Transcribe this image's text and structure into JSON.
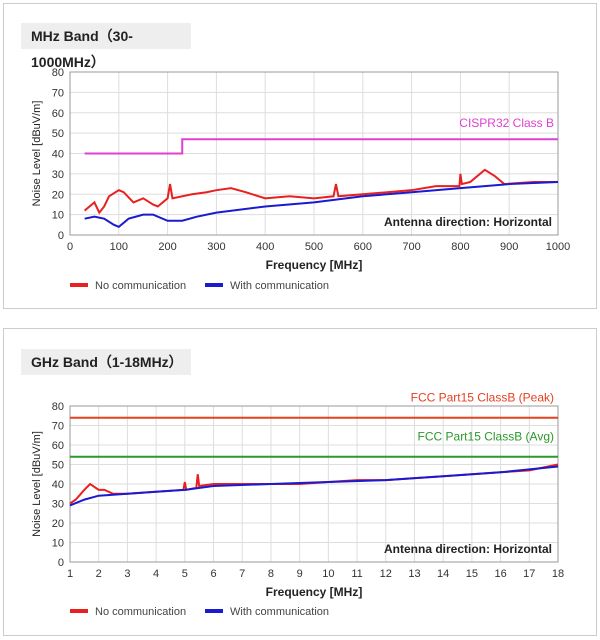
{
  "chart_data": [
    {
      "type": "line",
      "header": "MHz Band（30-1000MHz）",
      "xlabel": "Frequency [MHz]",
      "ylabel": "Noise Level [dBuV/m]",
      "xlim": [
        0,
        1000
      ],
      "ylim": [
        0,
        80
      ],
      "xticks": [
        0,
        100,
        200,
        300,
        400,
        500,
        600,
        700,
        800,
        900,
        1000
      ],
      "yticks": [
        0,
        10,
        20,
        30,
        40,
        50,
        60,
        70,
        80
      ],
      "grid": true,
      "legend": "bottom-left",
      "annotation": "Antenna direction: Horizontal",
      "limits": [
        {
          "name": "CISPR32 Class B",
          "color": "#e040d0",
          "points": [
            [
              30,
              40
            ],
            [
              230,
              40
            ],
            [
              230,
              47
            ],
            [
              1000,
              47
            ]
          ]
        }
      ],
      "series": [
        {
          "name": "No communication",
          "color": "#e82020",
          "points": [
            [
              30,
              12
            ],
            [
              40,
              14
            ],
            [
              50,
              16
            ],
            [
              60,
              11
            ],
            [
              70,
              14
            ],
            [
              80,
              19
            ],
            [
              100,
              22
            ],
            [
              110,
              21
            ],
            [
              130,
              16
            ],
            [
              150,
              18
            ],
            [
              170,
              15
            ],
            [
              180,
              14
            ],
            [
              200,
              18
            ],
            [
              205,
              25
            ],
            [
              210,
              18
            ],
            [
              250,
              20
            ],
            [
              280,
              21
            ],
            [
              300,
              22
            ],
            [
              330,
              23
            ],
            [
              360,
              21
            ],
            [
              400,
              18
            ],
            [
              450,
              19
            ],
            [
              500,
              18
            ],
            [
              540,
              19
            ],
            [
              545,
              25
            ],
            [
              550,
              19
            ],
            [
              600,
              20
            ],
            [
              650,
              21
            ],
            [
              700,
              22
            ],
            [
              750,
              24
            ],
            [
              798,
              24
            ],
            [
              800,
              30
            ],
            [
              803,
              25
            ],
            [
              820,
              26
            ],
            [
              850,
              32
            ],
            [
              870,
              29
            ],
            [
              890,
              25
            ],
            [
              950,
              26
            ],
            [
              1000,
              26
            ]
          ]
        },
        {
          "name": "With communication",
          "color": "#1a1ad0",
          "points": [
            [
              30,
              8
            ],
            [
              50,
              9
            ],
            [
              70,
              8
            ],
            [
              90,
              5
            ],
            [
              100,
              4
            ],
            [
              120,
              8
            ],
            [
              150,
              10
            ],
            [
              170,
              10
            ],
            [
              200,
              7
            ],
            [
              230,
              7
            ],
            [
              260,
              9
            ],
            [
              300,
              11
            ],
            [
              400,
              14
            ],
            [
              500,
              16
            ],
            [
              600,
              19
            ],
            [
              700,
              21
            ],
            [
              800,
              23
            ],
            [
              850,
              24
            ],
            [
              900,
              25
            ],
            [
              1000,
              26
            ]
          ]
        }
      ]
    },
    {
      "type": "line",
      "header": "GHz Band（1-18MHz）",
      "xlabel": "Frequency [MHz]",
      "ylabel": "Noise Level [dBuV/m]",
      "xlim": [
        1,
        18
      ],
      "ylim": [
        0,
        80
      ],
      "xticks": [
        1,
        2,
        3,
        4,
        5,
        6,
        7,
        8,
        9,
        10,
        11,
        12,
        13,
        14,
        15,
        16,
        17,
        18
      ],
      "yticks": [
        0,
        10,
        20,
        30,
        40,
        50,
        60,
        70,
        80
      ],
      "grid": true,
      "legend": "bottom-left",
      "annotation": "Antenna direction: Horizontal",
      "limits": [
        {
          "name": "FCC Part15 ClassB (Peak)",
          "color": "#e8401f",
          "points": [
            [
              1,
              74
            ],
            [
              18,
              74
            ]
          ]
        },
        {
          "name": "FCC Part15 ClassB (Avg)",
          "color": "#2a9a2a",
          "points": [
            [
              1,
              54
            ],
            [
              18,
              54
            ]
          ]
        }
      ],
      "series": [
        {
          "name": "No communication",
          "color": "#e82020",
          "points": [
            [
              1,
              30
            ],
            [
              1.2,
              32
            ],
            [
              1.5,
              37
            ],
            [
              1.7,
              40
            ],
            [
              2,
              37
            ],
            [
              2.2,
              37
            ],
            [
              2.5,
              35
            ],
            [
              3,
              35
            ],
            [
              4,
              36
            ],
            [
              4.95,
              37
            ],
            [
              5,
              41
            ],
            [
              5.05,
              37
            ],
            [
              5.4,
              38
            ],
            [
              5.45,
              45
            ],
            [
              5.5,
              39
            ],
            [
              6,
              40
            ],
            [
              7,
              40
            ],
            [
              8,
              40
            ],
            [
              9,
              40
            ],
            [
              10,
              41
            ],
            [
              11,
              42
            ],
            [
              12,
              42
            ],
            [
              13,
              43
            ],
            [
              14,
              44
            ],
            [
              15,
              45
            ],
            [
              16,
              46
            ],
            [
              17,
              47
            ],
            [
              18,
              50
            ]
          ]
        },
        {
          "name": "With communication",
          "color": "#1a1ad0",
          "points": [
            [
              1,
              29
            ],
            [
              1.5,
              32
            ],
            [
              2,
              34
            ],
            [
              3,
              35
            ],
            [
              4,
              36
            ],
            [
              5,
              37
            ],
            [
              6,
              39
            ],
            [
              8,
              40
            ],
            [
              10,
              41
            ],
            [
              12,
              42
            ],
            [
              14,
              44
            ],
            [
              16,
              46
            ],
            [
              18,
              49
            ]
          ]
        }
      ]
    }
  ]
}
